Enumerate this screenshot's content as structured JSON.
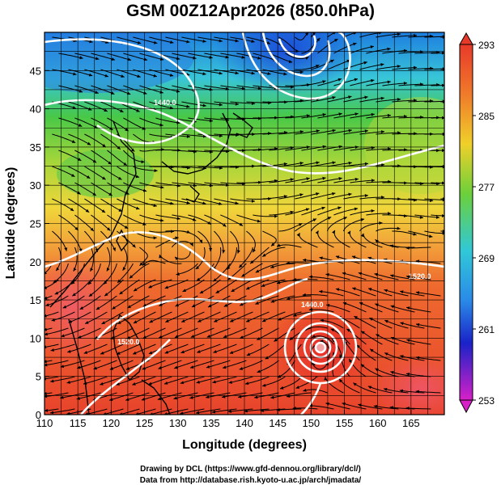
{
  "title": "GSM 00Z12Apr2026 (850.0hPa)",
  "x_axis": {
    "label": "Longitude (degrees)",
    "range": [
      110,
      170
    ],
    "ticks": [
      "110",
      "115",
      "120",
      "125",
      "130",
      "135",
      "140",
      "145",
      "150",
      "155",
      "160",
      "165"
    ]
  },
  "y_axis": {
    "label": "Latitude  (degrees)",
    "range": [
      0,
      50
    ],
    "ticks": [
      "0",
      "5",
      "10",
      "15",
      "20",
      "25",
      "30",
      "35",
      "40",
      "45"
    ]
  },
  "colorbar": {
    "range": [
      253,
      293
    ],
    "labels": [
      "293",
      "285",
      "277",
      "269",
      "261",
      "253"
    ]
  },
  "contour_labels": [
    "1440.0",
    "1520.0",
    "1520.0",
    "1440.0"
  ],
  "credits": [
    "Drawing by DCL (https://www.gfd-dennou.org/library/dcl/)",
    "Data from http://database.rish.kyoto-u.ac.jp/arch/jmadata/"
  ],
  "colors": {
    "warm": "#e8402a",
    "orange": "#f07a2a",
    "yellow": "#f2d22a",
    "green": "#4ac838",
    "cyan": "#34c8d8",
    "blue": "#1c5ad8",
    "purple": "#c030d0",
    "contour": "#ffffff",
    "streamline": "#000000"
  }
}
